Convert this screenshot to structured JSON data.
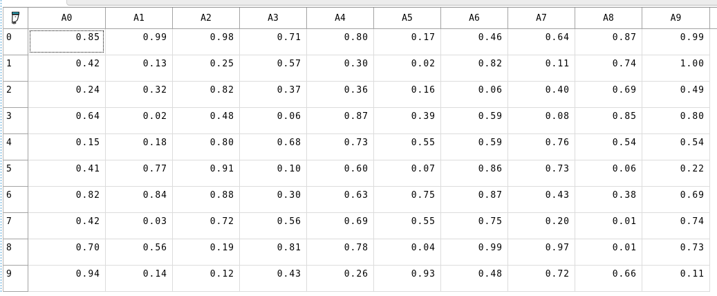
{
  "widget": {
    "type": "data-grid",
    "corner_icon": "pen-icon"
  },
  "grid": {
    "columns": [
      "A0",
      "A1",
      "A2",
      "A3",
      "A4",
      "A5",
      "A6",
      "A7",
      "A8",
      "A9"
    ],
    "row_labels": [
      "0",
      "1",
      "2",
      "3",
      "4",
      "5",
      "6",
      "7",
      "8",
      "9"
    ],
    "rows": [
      [
        "0.85",
        "0.99",
        "0.98",
        "0.71",
        "0.80",
        "0.17",
        "0.46",
        "0.64",
        "0.87",
        "0.99"
      ],
      [
        "0.42",
        "0.13",
        "0.25",
        "0.57",
        "0.30",
        "0.02",
        "0.82",
        "0.11",
        "0.74",
        "1.00"
      ],
      [
        "0.24",
        "0.32",
        "0.82",
        "0.37",
        "0.36",
        "0.16",
        "0.06",
        "0.40",
        "0.69",
        "0.49"
      ],
      [
        "0.64",
        "0.02",
        "0.48",
        "0.06",
        "0.87",
        "0.39",
        "0.59",
        "0.08",
        "0.85",
        "0.80"
      ],
      [
        "0.15",
        "0.18",
        "0.80",
        "0.68",
        "0.73",
        "0.55",
        "0.59",
        "0.76",
        "0.54",
        "0.54"
      ],
      [
        "0.41",
        "0.77",
        "0.91",
        "0.10",
        "0.60",
        "0.07",
        "0.86",
        "0.73",
        "0.06",
        "0.22"
      ],
      [
        "0.82",
        "0.84",
        "0.88",
        "0.30",
        "0.63",
        "0.75",
        "0.87",
        "0.43",
        "0.38",
        "0.69"
      ],
      [
        "0.42",
        "0.03",
        "0.72",
        "0.56",
        "0.69",
        "0.55",
        "0.75",
        "0.20",
        "0.01",
        "0.74"
      ],
      [
        "0.70",
        "0.56",
        "0.19",
        "0.81",
        "0.78",
        "0.04",
        "0.99",
        "0.97",
        "0.01",
        "0.73"
      ],
      [
        "0.94",
        "0.14",
        "0.12",
        "0.43",
        "0.26",
        "0.93",
        "0.48",
        "0.72",
        "0.66",
        "0.11"
      ]
    ],
    "selection": {
      "row": 0,
      "col": 0,
      "value": "0.85"
    }
  },
  "colors": {
    "header_border": "#a3a3a3",
    "cell_border": "#dcdcdc",
    "grid_outer_border": "#8f8f8f",
    "sash_dotted_blue": "#4da1d5",
    "top_bar_fill": "#ececec",
    "icon_teal": "#2fb3c9",
    "text": "#000000",
    "background": "#ffffff"
  }
}
